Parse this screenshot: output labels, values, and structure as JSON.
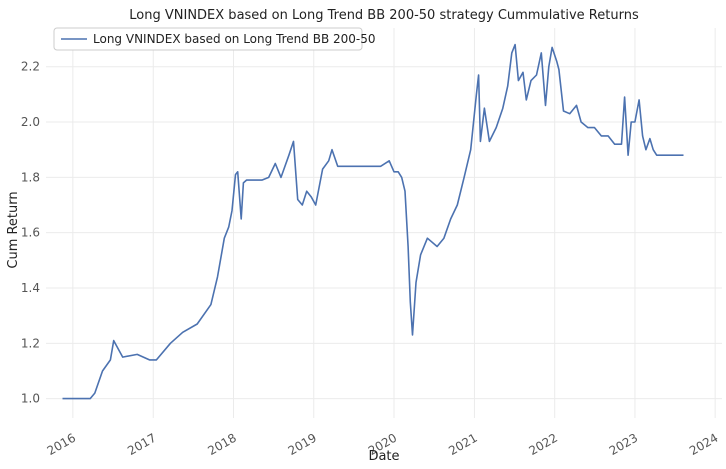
{
  "chart_data": {
    "type": "line",
    "title": "Long VNINDEX based on Long Trend BB 200-50 strategy Cummulative Returns",
    "xlabel": "Date",
    "ylabel": "Cum Return",
    "xlim": [
      "2015-09-01",
      "2024-02-01"
    ],
    "ylim": [
      0.93,
      2.34
    ],
    "x_ticks": [
      "2016-01-01",
      "2017-01-01",
      "2018-01-01",
      "2019-01-01",
      "2020-01-01",
      "2021-01-01",
      "2022-01-01",
      "2023-01-01",
      "2024-01-01"
    ],
    "x_tick_labels": [
      "2016",
      "2017",
      "2018",
      "2019",
      "2020",
      "2021",
      "2022",
      "2023",
      "2024"
    ],
    "y_ticks": [
      1.0,
      1.2,
      1.4,
      1.6,
      1.8,
      2.0,
      2.2
    ],
    "y_tick_labels": [
      "1.0",
      "1.2",
      "1.4",
      "1.6",
      "1.8",
      "2.0",
      "2.2"
    ],
    "grid": true,
    "legend_position": "top-left",
    "series": [
      {
        "name": "Long VNINDEX based on Long Trend BB 200-50",
        "color": "#4c72b0",
        "x": [
          "2015-11-15",
          "2016-03-20",
          "2016-04-10",
          "2016-05-15",
          "2016-06-20",
          "2016-07-05",
          "2016-08-15",
          "2016-10-20",
          "2016-12-15",
          "2017-01-15",
          "2017-03-20",
          "2017-05-15",
          "2017-07-20",
          "2017-09-20",
          "2017-10-20",
          "2017-11-20",
          "2017-12-10",
          "2017-12-25",
          "2018-01-10",
          "2018-01-20",
          "2018-02-05",
          "2018-02-15",
          "2018-03-01",
          "2018-04-10",
          "2018-05-10",
          "2018-06-10",
          "2018-07-10",
          "2018-08-05",
          "2018-09-10",
          "2018-10-01",
          "2018-10-20",
          "2018-11-10",
          "2018-11-30",
          "2018-12-20",
          "2019-01-10",
          "2019-02-10",
          "2019-03-10",
          "2019-03-25",
          "2019-04-20",
          "2019-06-01",
          "2019-08-01",
          "2019-10-01",
          "2019-11-01",
          "2019-12-10",
          "2020-01-01",
          "2020-01-20",
          "2020-02-05",
          "2020-02-20",
          "2020-03-05",
          "2020-03-15",
          "2020-03-25",
          "2020-04-10",
          "2020-05-01",
          "2020-06-01",
          "2020-07-15",
          "2020-08-15",
          "2020-09-15",
          "2020-10-15",
          "2020-11-15",
          "2020-12-15",
          "2021-01-10",
          "2021-01-20",
          "2021-01-28",
          "2021-02-15",
          "2021-03-10",
          "2021-04-10",
          "2021-05-10",
          "2021-06-01",
          "2021-06-20",
          "2021-07-05",
          "2021-07-20",
          "2021-08-10",
          "2021-08-25",
          "2021-09-15",
          "2021-10-10",
          "2021-11-01",
          "2021-11-20",
          "2021-12-05",
          "2021-12-20",
          "2022-01-10",
          "2022-01-20",
          "2022-02-10",
          "2022-03-10",
          "2022-04-10",
          "2022-05-01",
          "2022-06-01",
          "2022-07-01",
          "2022-08-01",
          "2022-09-01",
          "2022-10-01",
          "2022-11-01",
          "2022-11-15",
          "2022-12-01",
          "2022-12-15",
          "2023-01-01",
          "2023-01-20",
          "2023-02-05",
          "2023-02-20",
          "2023-03-10",
          "2023-03-25",
          "2023-04-10",
          "2023-05-01",
          "2023-06-01",
          "2023-07-01",
          "2023-08-10"
        ],
        "y": [
          1.0,
          1.0,
          1.02,
          1.1,
          1.14,
          1.21,
          1.15,
          1.16,
          1.14,
          1.14,
          1.2,
          1.24,
          1.27,
          1.34,
          1.44,
          1.58,
          1.62,
          1.68,
          1.81,
          1.82,
          1.65,
          1.78,
          1.79,
          1.79,
          1.79,
          1.8,
          1.85,
          1.8,
          1.88,
          1.93,
          1.72,
          1.7,
          1.75,
          1.73,
          1.7,
          1.83,
          1.86,
          1.9,
          1.84,
          1.84,
          1.84,
          1.84,
          1.84,
          1.86,
          1.82,
          1.82,
          1.8,
          1.75,
          1.55,
          1.35,
          1.23,
          1.42,
          1.52,
          1.58,
          1.55,
          1.58,
          1.65,
          1.7,
          1.8,
          1.9,
          2.1,
          2.17,
          1.93,
          2.05,
          1.93,
          1.98,
          2.05,
          2.13,
          2.25,
          2.28,
          2.15,
          2.18,
          2.08,
          2.15,
          2.17,
          2.25,
          2.06,
          2.2,
          2.27,
          2.22,
          2.19,
          2.04,
          2.03,
          2.06,
          2.0,
          1.98,
          1.98,
          1.95,
          1.95,
          1.92,
          1.92,
          2.09,
          1.88,
          2.0,
          2.0,
          2.08,
          1.95,
          1.9,
          1.94,
          1.9,
          1.88,
          1.88,
          1.88,
          1.88,
          1.88
        ]
      }
    ]
  }
}
